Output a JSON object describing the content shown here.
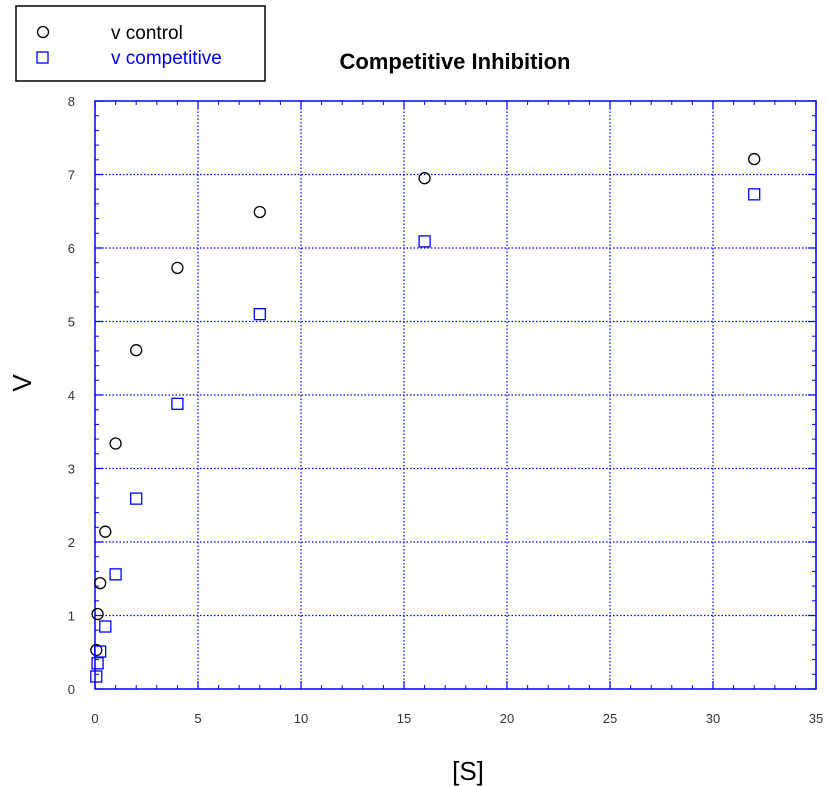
{
  "chart_data": {
    "type": "scatter",
    "title": "Competitive Inhibition",
    "xlabel": "[S]",
    "ylabel": "V",
    "xlim": [
      0,
      35
    ],
    "ylim": [
      0,
      8
    ],
    "xticks": [
      0,
      5,
      10,
      15,
      20,
      25,
      30,
      35
    ],
    "yticks": [
      0,
      1,
      2,
      3,
      4,
      5,
      6,
      7,
      8
    ],
    "grid": true,
    "legend_position": "top-left",
    "axis_color": "#0000ff",
    "series": [
      {
        "name": "v control",
        "marker": "circle",
        "color": "#000000",
        "x": [
          0.0625,
          0.125,
          0.25,
          0.5,
          1,
          2,
          4,
          8,
          16,
          32
        ],
        "y": [
          0.53,
          1.02,
          1.44,
          2.14,
          3.34,
          4.61,
          5.73,
          6.49,
          6.95,
          7.21
        ]
      },
      {
        "name": "v competitive",
        "marker": "square",
        "color": "#0000ff",
        "x": [
          0.0625,
          0.125,
          0.25,
          0.5,
          1,
          2,
          4,
          8,
          16,
          32
        ],
        "y": [
          0.17,
          0.35,
          0.51,
          0.85,
          1.56,
          2.59,
          3.88,
          5.1,
          6.09,
          6.73
        ]
      }
    ]
  }
}
